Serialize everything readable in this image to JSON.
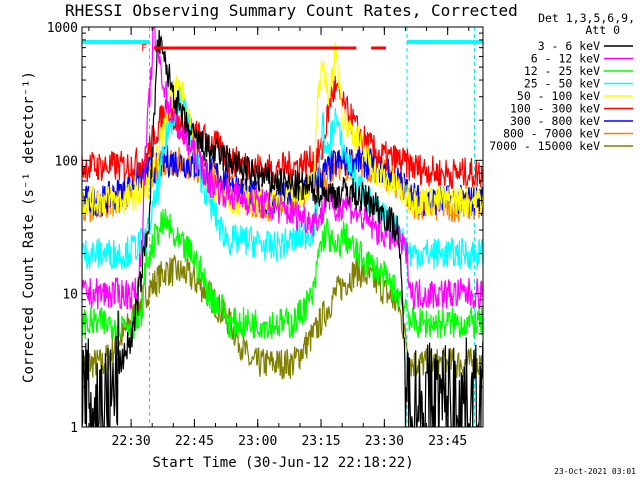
{
  "chart_data": {
    "type": "line",
    "title": "RHESSI Observing Summary Count Rates, Corrected",
    "xlabel": "Start Time (30-Jun-12 22:18:22)",
    "ylabel": "Corrected Count Rate (s⁻¹ detector⁻¹)",
    "y_scale": "log",
    "ylim": [
      1,
      1000
    ],
    "xlim_minutes": [
      0,
      95
    ],
    "x_ticks": [
      "22:30",
      "22:45",
      "23:00",
      "23:15",
      "23:30",
      "23:45"
    ],
    "y_ticks": [
      "1",
      "10",
      "100",
      "1000"
    ],
    "legend_header": [
      "Det 1,3,5,6,9,",
      "Att 0"
    ],
    "legend_placement": "right",
    "timestamp": "23-Oct-2021 03:01",
    "flag_label": "F",
    "flare_flag_bar_color": "#ff0000",
    "series": [
      {
        "name": "3 - 6 keV",
        "color": "#000000",
        "x": [
          0,
          7,
          9,
          12,
          13,
          16,
          18,
          22,
          24,
          26,
          30,
          35,
          40,
          45,
          50,
          55,
          60,
          63,
          65,
          68,
          70,
          75,
          77,
          80,
          85,
          88,
          95
        ],
        "y": [
          1.5,
          1.5,
          3,
          5,
          8,
          40,
          800,
          300,
          200,
          150,
          120,
          100,
          80,
          70,
          65,
          60,
          55,
          60,
          55,
          50,
          45,
          30,
          1.5,
          1.5,
          1.5,
          1.5,
          1.5
        ]
      },
      {
        "name": "6 - 12 keV",
        "color": "#ff00ff",
        "x": [
          0,
          12,
          13,
          14,
          15,
          17,
          20,
          22,
          24,
          28,
          30,
          33,
          35,
          40,
          45,
          50,
          55,
          57,
          58,
          60,
          62,
          65,
          70,
          75,
          77,
          78,
          85,
          95
        ],
        "y": [
          10,
          10,
          10,
          20,
          100,
          900,
          300,
          200,
          150,
          100,
          70,
          60,
          55,
          50,
          45,
          40,
          35,
          40,
          60,
          40,
          50,
          40,
          30,
          25,
          20,
          10,
          10,
          10
        ]
      },
      {
        "name": "12 - 25 keV",
        "color": "#00ff00",
        "x": [
          0,
          12,
          14,
          15,
          18,
          20,
          22,
          24,
          26,
          28,
          30,
          33,
          35,
          40,
          45,
          50,
          55,
          56,
          57,
          58,
          60,
          62,
          65,
          70,
          75,
          77,
          78,
          85,
          95
        ],
        "y": [
          6,
          6,
          6,
          15,
          30,
          35,
          25,
          22,
          20,
          15,
          10,
          8,
          6,
          6,
          6,
          6,
          10,
          20,
          25,
          30,
          20,
          28,
          20,
          15,
          10,
          8,
          6,
          6,
          6
        ]
      },
      {
        "name": "25 - 50 keV",
        "color": "#00ffff",
        "x": [
          0,
          10,
          15,
          18,
          20,
          23,
          25,
          27,
          30,
          33,
          35,
          40,
          45,
          50,
          55,
          56,
          57,
          58,
          59,
          60,
          61,
          62,
          65,
          70,
          75,
          77,
          78,
          85,
          95
        ],
        "y": [
          20,
          20,
          25,
          60,
          150,
          300,
          200,
          100,
          50,
          30,
          25,
          25,
          22,
          25,
          30,
          60,
          200,
          100,
          150,
          220,
          150,
          120,
          70,
          40,
          30,
          22,
          20,
          20,
          20
        ]
      },
      {
        "name": "50 - 100 keV",
        "color": "#ffff00",
        "x": [
          0,
          10,
          15,
          17,
          20,
          22,
          24,
          26,
          28,
          30,
          35,
          40,
          45,
          50,
          55,
          56,
          57,
          58,
          59,
          60,
          61,
          62,
          65,
          68,
          70,
          75,
          77,
          78,
          85,
          95
        ],
        "y": [
          50,
          50,
          60,
          80,
          200,
          400,
          300,
          150,
          90,
          60,
          50,
          50,
          50,
          55,
          70,
          300,
          600,
          300,
          400,
          600,
          400,
          200,
          150,
          100,
          80,
          60,
          55,
          50,
          50,
          50
        ]
      },
      {
        "name": "100 - 300 keV",
        "color": "#ff0000",
        "x": [
          0,
          10,
          15,
          17,
          20,
          22,
          24,
          26,
          28,
          30,
          33,
          35,
          40,
          45,
          50,
          55,
          57,
          58,
          59,
          60,
          61,
          62,
          64,
          66,
          68,
          70,
          75,
          78,
          85,
          95
        ],
        "y": [
          90,
          90,
          100,
          150,
          250,
          200,
          180,
          160,
          150,
          140,
          120,
          100,
          90,
          85,
          90,
          100,
          120,
          200,
          300,
          350,
          300,
          250,
          200,
          150,
          130,
          110,
          100,
          90,
          80,
          80
        ]
      },
      {
        "name": "300 - 800 keV",
        "color": "#0000ff",
        "x": [
          0,
          5,
          10,
          15,
          20,
          25,
          30,
          35,
          40,
          45,
          50,
          55,
          60,
          65,
          70,
          75,
          78,
          80,
          85,
          95
        ],
        "y": [
          50,
          50,
          60,
          80,
          100,
          95,
          85,
          70,
          55,
          50,
          55,
          70,
          95,
          100,
          90,
          70,
          55,
          50,
          50,
          50
        ]
      },
      {
        "name": "800 - 7000 keV",
        "color": "#ff8000",
        "x": [
          0,
          5,
          10,
          15,
          20,
          25,
          30,
          35,
          40,
          45,
          50,
          55,
          60,
          65,
          70,
          75,
          78,
          80,
          85,
          95
        ],
        "y": [
          45,
          45,
          55,
          75,
          100,
          95,
          80,
          65,
          50,
          45,
          50,
          65,
          90,
          95,
          85,
          65,
          50,
          45,
          45,
          45
        ]
      },
      {
        "name": "7000 - 15000 keV",
        "color": "#808000",
        "x": [
          0,
          5,
          10,
          15,
          20,
          25,
          30,
          35,
          38,
          40,
          45,
          50,
          55,
          60,
          65,
          70,
          75,
          78,
          80,
          85,
          95
        ],
        "y": [
          3,
          3,
          5,
          10,
          15,
          14,
          10,
          6,
          4,
          3,
          3,
          3,
          5,
          10,
          15,
          12,
          8,
          3,
          3,
          3,
          3
        ]
      }
    ]
  }
}
